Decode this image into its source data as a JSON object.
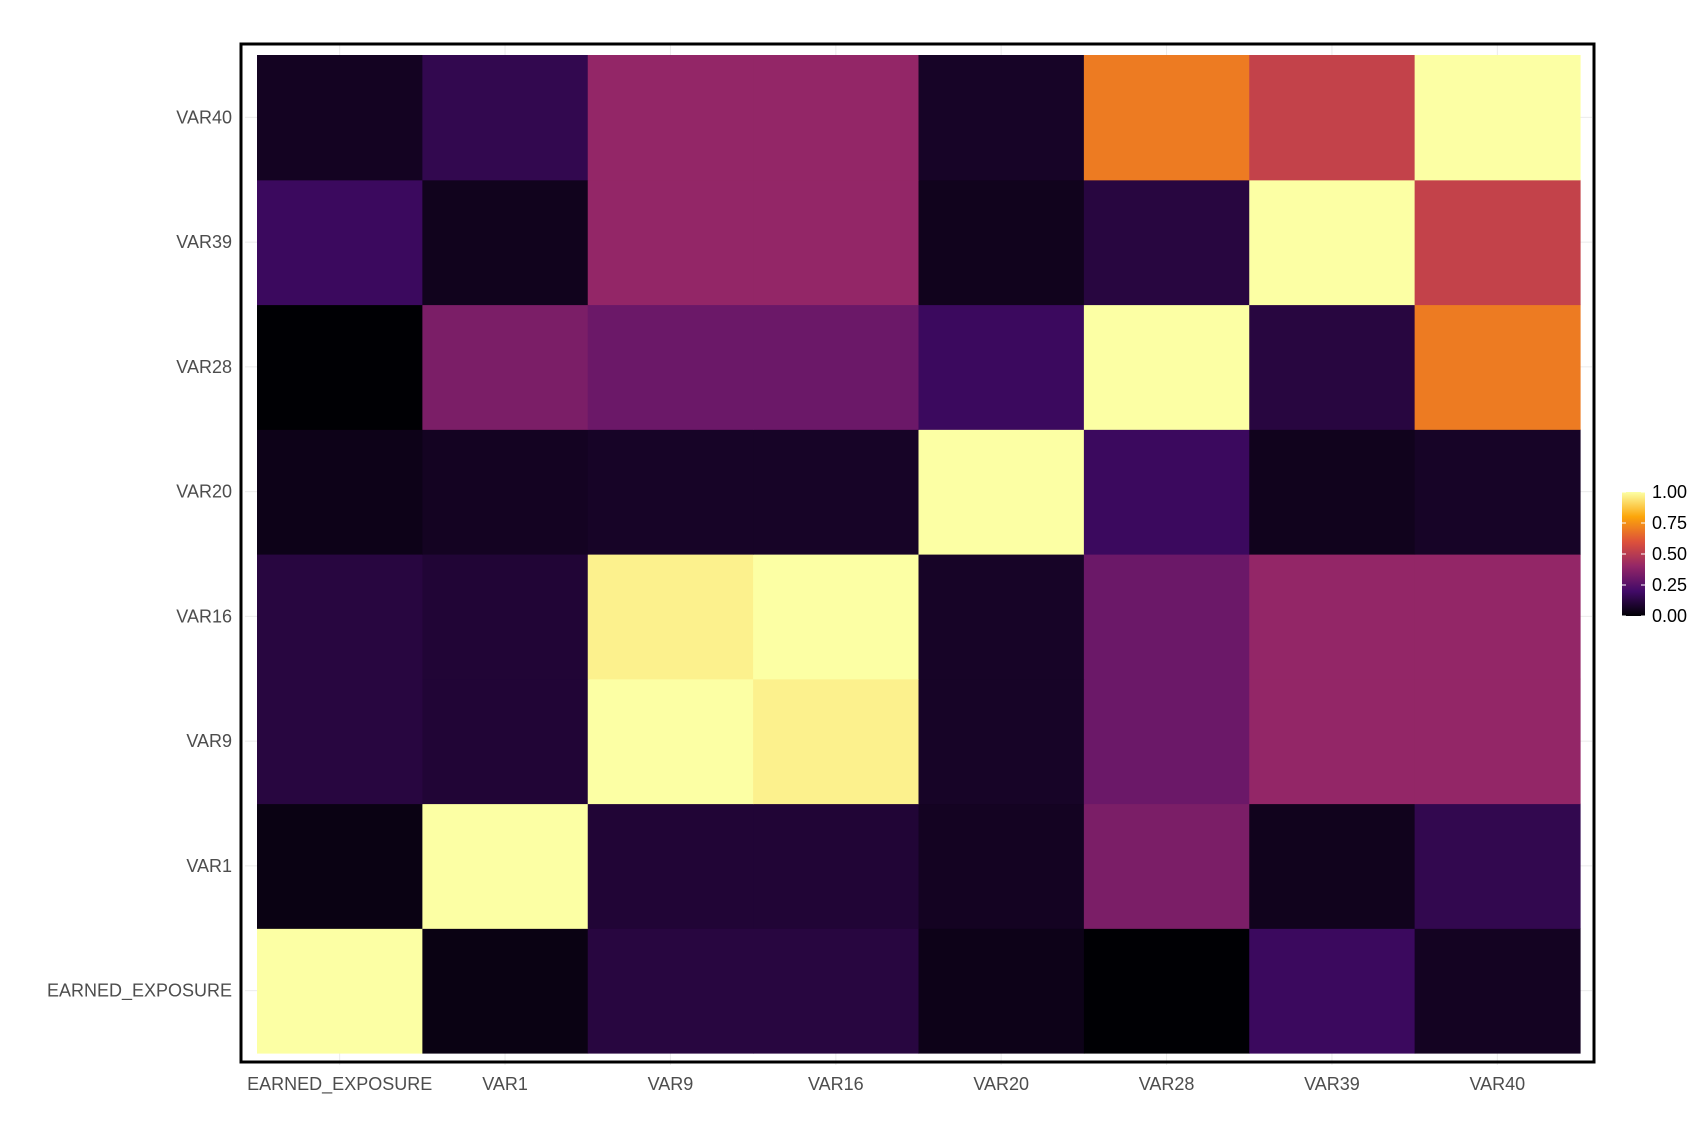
{
  "chart_data": {
    "type": "heatmap",
    "title": "",
    "xlabel": "",
    "ylabel": "",
    "x_categories": [
      "EARNED_EXPOSURE",
      "VAR1",
      "VAR9",
      "VAR16",
      "VAR20",
      "VAR28",
      "VAR39",
      "VAR40"
    ],
    "y_categories": [
      "EARNED_EXPOSURE",
      "VAR1",
      "VAR9",
      "VAR16",
      "VAR20",
      "VAR28",
      "VAR39",
      "VAR40"
    ],
    "values": [
      [
        1.0,
        0.03,
        0.12,
        0.12,
        0.04,
        0.0,
        0.18,
        0.06
      ],
      [
        0.03,
        1.0,
        0.1,
        0.1,
        0.06,
        0.34,
        0.05,
        0.15
      ],
      [
        0.12,
        0.1,
        1.0,
        0.97,
        0.07,
        0.3,
        0.4,
        0.4
      ],
      [
        0.12,
        0.1,
        0.97,
        1.0,
        0.07,
        0.3,
        0.4,
        0.4
      ],
      [
        0.04,
        0.06,
        0.07,
        0.07,
        1.0,
        0.18,
        0.05,
        0.07
      ],
      [
        0.0,
        0.34,
        0.3,
        0.3,
        0.18,
        1.0,
        0.12,
        0.7
      ],
      [
        0.18,
        0.05,
        0.4,
        0.4,
        0.05,
        0.12,
        1.0,
        0.53
      ],
      [
        0.06,
        0.15,
        0.4,
        0.4,
        0.07,
        0.7,
        0.53,
        1.0
      ]
    ],
    "color_scale": {
      "name": "inferno",
      "min": 0,
      "max": 1,
      "stops": [
        "#000004",
        "#420a68",
        "#932667",
        "#dd513a",
        "#fca50a",
        "#fcffa4"
      ]
    },
    "legend": {
      "position": "right",
      "ticks": [
        1.0,
        0.75,
        0.5,
        0.25,
        0.0
      ],
      "tick_labels": [
        "1.00",
        "0.75",
        "0.50",
        "0.25",
        "0.00"
      ]
    },
    "grid": true
  }
}
